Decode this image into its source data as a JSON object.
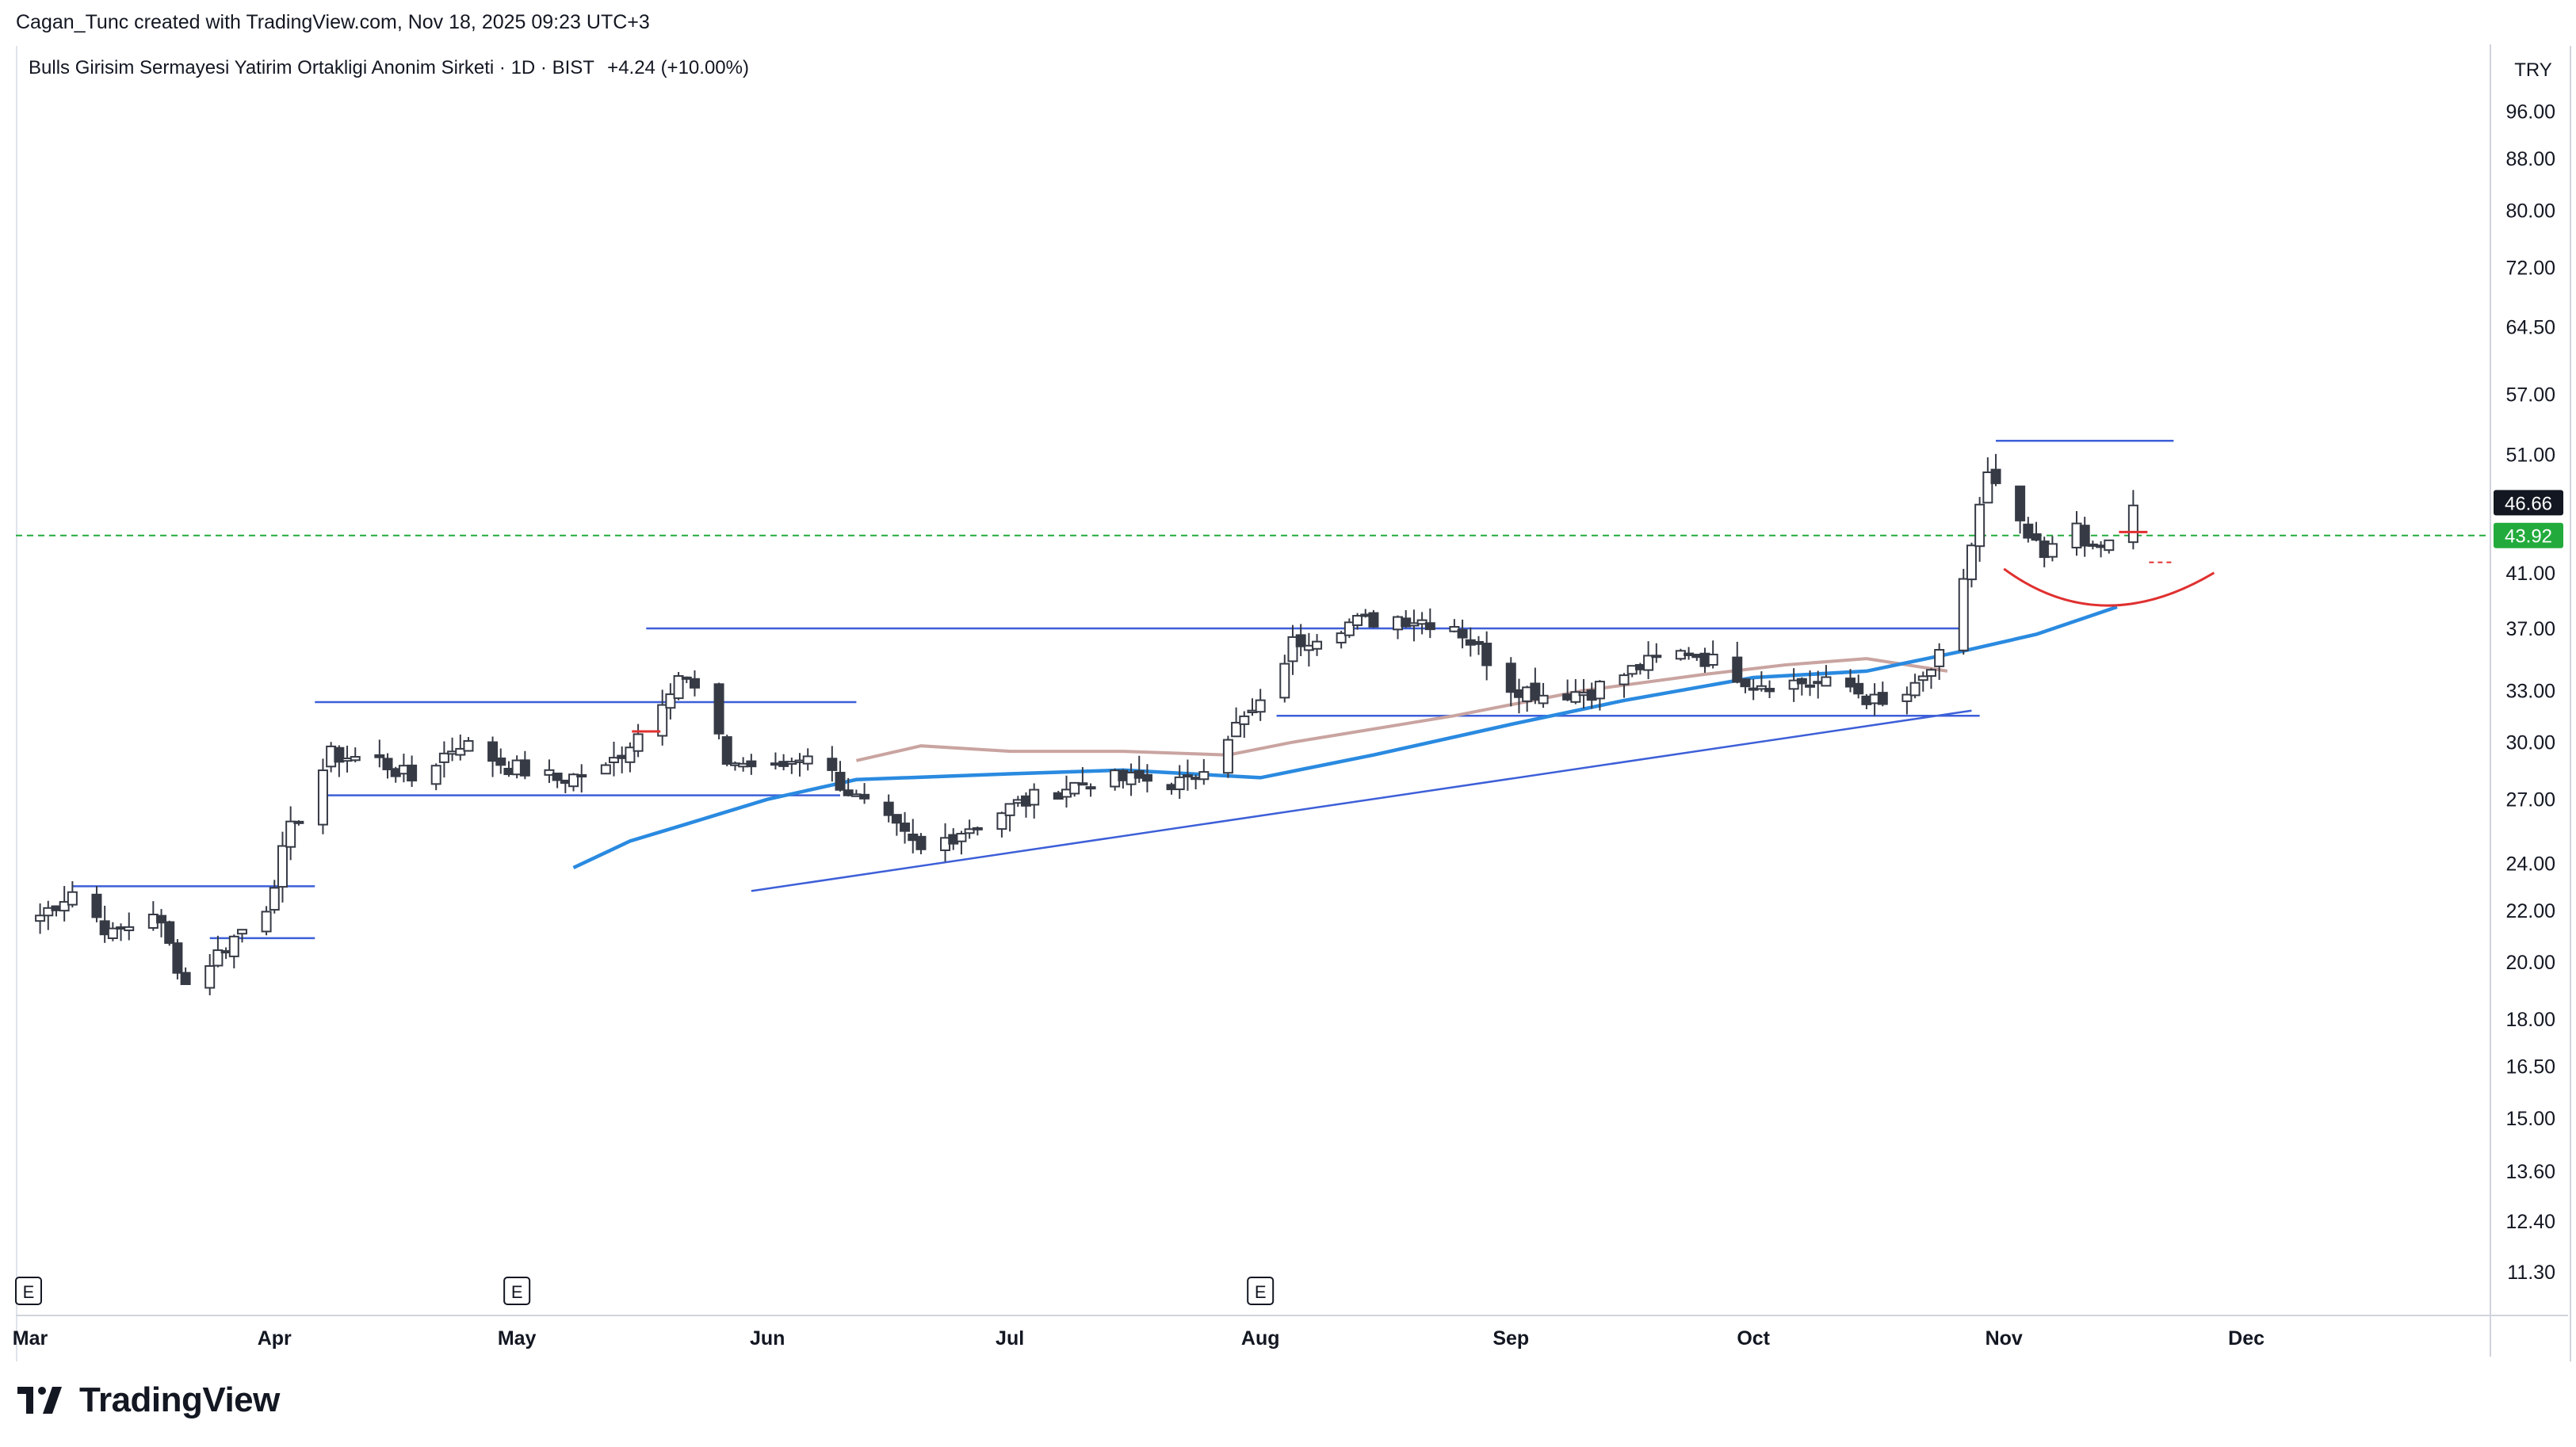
{
  "header": {
    "attribution": "Cagan_Tunc created with TradingView.com, Nov 18, 2025 09:23 UTC+3"
  },
  "legend": {
    "title": "Bulls Girisim Sermayesi Yatirim Ortakligi Anonim Sirketi · 1D · BIST",
    "change": "+4.24 (+10.00%)"
  },
  "brand": {
    "name": "TradingView",
    "icon": "tradingview-logo-icon"
  },
  "colors": {
    "up_candle": "#ffffff",
    "down_candle": "#363a45",
    "wick": "#363a45",
    "trendline": "#3d5fd8",
    "ma_fast": "#2a8ae0",
    "ma_slow": "#c9a4a0",
    "arc": "#e03030",
    "last_price": "#131722",
    "green_level": "#22ab3c"
  },
  "chart_data": {
    "type": "candlestick",
    "currency": "TRY",
    "y_scale": "log",
    "ylim": [
      10.5,
      108
    ],
    "x_range": [
      "2025-02-28",
      "2025-12-31"
    ],
    "y_ticks": [
      "96.00",
      "88.00",
      "80.00",
      "72.00",
      "64.50",
      "57.00",
      "51.00",
      "41.00",
      "37.00",
      "33.00",
      "30.00",
      "27.00",
      "24.00",
      "22.00",
      "20.00",
      "18.00",
      "16.50",
      "15.00",
      "13.60",
      "12.40",
      "11.30"
    ],
    "x_ticks": [
      {
        "label": "Mar",
        "date": "2025-03-01"
      },
      {
        "label": "Apr",
        "date": "2025-04-01"
      },
      {
        "label": "May",
        "date": "2025-05-01"
      },
      {
        "label": "Jun",
        "date": "2025-06-01"
      },
      {
        "label": "Jul",
        "date": "2025-07-01"
      },
      {
        "label": "Aug",
        "date": "2025-08-01"
      },
      {
        "label": "Sep",
        "date": "2025-09-01"
      },
      {
        "label": "Oct",
        "date": "2025-10-01"
      },
      {
        "label": "Nov",
        "date": "2025-11-01"
      },
      {
        "label": "Dec",
        "date": "2025-12-01"
      }
    ],
    "earnings_markers": [
      {
        "label": "E",
        "date": "2025-03-01"
      },
      {
        "label": "E",
        "date": "2025-05-01"
      },
      {
        "label": "E",
        "date": "2025-08-01"
      }
    ],
    "price_labels": [
      {
        "value": 46.66,
        "label": "46.66",
        "style": "dark"
      },
      {
        "value": 43.92,
        "label": "43.92",
        "style": "green"
      }
    ],
    "horizontal_level": {
      "value": 43.92,
      "style": "dashed-green"
    },
    "anchors": [
      [
        "2025-03-03",
        21.8
      ],
      [
        "2025-03-07",
        22.8
      ],
      [
        "2025-03-12",
        21.0
      ],
      [
        "2025-03-17",
        22.0
      ],
      [
        "2025-03-21",
        19.2
      ],
      [
        "2025-03-26",
        20.6
      ],
      [
        "2025-03-31",
        22.2
      ],
      [
        "2025-04-03",
        25.5
      ],
      [
        "2025-04-08",
        29.3
      ],
      [
        "2025-04-14",
        29.0
      ],
      [
        "2025-04-18",
        28.0
      ],
      [
        "2025-04-24",
        30.0
      ],
      [
        "2025-04-30",
        28.7
      ],
      [
        "2025-05-06",
        28.0
      ],
      [
        "2025-05-12",
        28.5
      ],
      [
        "2025-05-16",
        30.5
      ],
      [
        "2025-05-21",
        34.0
      ],
      [
        "2025-05-23",
        33.0
      ],
      [
        "2025-05-27",
        29.0
      ],
      [
        "2025-06-02",
        28.5
      ],
      [
        "2025-06-06",
        29.5
      ],
      [
        "2025-06-12",
        27.0
      ],
      [
        "2025-06-16",
        25.8
      ],
      [
        "2025-06-20",
        24.5
      ],
      [
        "2025-06-25",
        25.5
      ],
      [
        "2025-07-01",
        26.6
      ],
      [
        "2025-07-07",
        27.5
      ],
      [
        "2025-07-11",
        28.0
      ],
      [
        "2025-07-17",
        28.0
      ],
      [
        "2025-07-23",
        27.8
      ],
      [
        "2025-07-28",
        30.5
      ],
      [
        "2025-08-01",
        32.0
      ],
      [
        "2025-08-05",
        36.0
      ],
      [
        "2025-08-11",
        37.3
      ],
      [
        "2025-08-18",
        37.8
      ],
      [
        "2025-08-25",
        37.3
      ],
      [
        "2025-09-01",
        33.3
      ],
      [
        "2025-09-05",
        32.8
      ],
      [
        "2025-09-11",
        33.0
      ],
      [
        "2025-09-17",
        34.5
      ],
      [
        "2025-09-23",
        35.5
      ],
      [
        "2025-09-26",
        34.8
      ],
      [
        "2025-10-01",
        33.5
      ],
      [
        "2025-10-07",
        33.5
      ],
      [
        "2025-10-13",
        33.2
      ],
      [
        "2025-10-17",
        32.0
      ],
      [
        "2025-10-21",
        33.0
      ],
      [
        "2025-10-24",
        35.0
      ],
      [
        "2025-10-27",
        40.0
      ],
      [
        "2025-10-29",
        46.5
      ],
      [
        "2025-10-30",
        49.0
      ],
      [
        "2025-11-03",
        44.5
      ],
      [
        "2025-11-06",
        42.0
      ],
      [
        "2025-11-10",
        45.0
      ],
      [
        "2025-11-12",
        42.5
      ],
      [
        "2025-11-14",
        43.3
      ],
      [
        "2025-11-17",
        46.6
      ]
    ],
    "ma_fast": [
      [
        "2025-05-08",
        23.8
      ],
      [
        "2025-05-15",
        25.0
      ],
      [
        "2025-05-22",
        25.8
      ],
      [
        "2025-06-01",
        27.0
      ],
      [
        "2025-06-12",
        28.0
      ],
      [
        "2025-07-01",
        28.3
      ],
      [
        "2025-07-15",
        28.5
      ],
      [
        "2025-08-01",
        28.1
      ],
      [
        "2025-08-15",
        29.3
      ],
      [
        "2025-09-01",
        31.0
      ],
      [
        "2025-09-15",
        32.4
      ],
      [
        "2025-10-01",
        33.8
      ],
      [
        "2025-10-15",
        34.2
      ],
      [
        "2025-10-27",
        35.5
      ],
      [
        "2025-11-05",
        36.6
      ],
      [
        "2025-11-15",
        38.5
      ]
    ],
    "ma_slow": [
      [
        "2025-06-12",
        29.0
      ],
      [
        "2025-06-20",
        29.8
      ],
      [
        "2025-07-01",
        29.5
      ],
      [
        "2025-07-15",
        29.5
      ],
      [
        "2025-07-28",
        29.3
      ],
      [
        "2025-08-05",
        30.0
      ],
      [
        "2025-08-25",
        31.5
      ],
      [
        "2025-09-10",
        33.0
      ],
      [
        "2025-09-25",
        34.0
      ],
      [
        "2025-10-05",
        34.6
      ],
      [
        "2025-10-15",
        35.0
      ],
      [
        "2025-10-25",
        34.2
      ]
    ],
    "trendlines": [
      {
        "from": [
          "2025-03-07",
          23.0
        ],
        "to": [
          "2025-04-06",
          23.0
        ]
      },
      {
        "from": [
          "2025-03-24",
          20.9
        ],
        "to": [
          "2025-04-06",
          20.9
        ]
      },
      {
        "from": [
          "2025-04-06",
          32.3
        ],
        "to": [
          "2025-06-12",
          32.3
        ]
      },
      {
        "from": [
          "2025-04-07",
          27.2
        ],
        "to": [
          "2025-06-10",
          27.2
        ]
      },
      {
        "from": [
          "2025-05-17",
          37.0
        ],
        "to": [
          "2025-10-27",
          37.0
        ]
      },
      {
        "from": [
          "2025-08-03",
          31.5
        ],
        "to": [
          "2025-10-29",
          31.5
        ]
      },
      {
        "from": [
          "2025-05-30",
          22.8
        ],
        "to": [
          "2025-10-28",
          31.8
        ]
      },
      {
        "from": [
          "2025-10-31",
          52.3
        ],
        "to": [
          "2025-11-22",
          52.3
        ]
      }
    ],
    "arc": {
      "from": [
        "2025-11-01",
        41.3
      ],
      "bottom": [
        "2025-11-13",
        38.6
      ],
      "to": [
        "2025-11-27",
        41.0
      ]
    },
    "marks": [
      {
        "date": "2025-05-17",
        "value": 30.6,
        "style": "red-dash"
      },
      {
        "date": "2025-11-17",
        "value": 44.2,
        "style": "red-dash"
      }
    ]
  }
}
